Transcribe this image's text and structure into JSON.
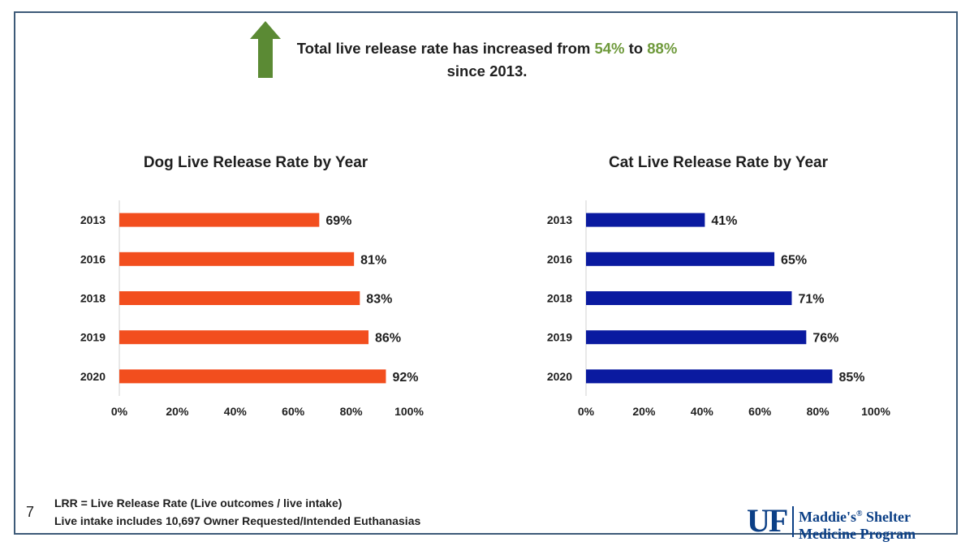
{
  "headline": {
    "part1": "Total live release rate has increased from ",
    "from": "54%",
    "part2": " to ",
    "to": "88%",
    "line2": "since 2013."
  },
  "colors": {
    "arrow": "#5b8a34",
    "highlight": "#6f9a3c",
    "dog_bars": "#f24e1e",
    "cat_bars": "#0a1aa0",
    "frame": "#3d5a78",
    "logo": "#0b3f86"
  },
  "icons": {
    "trend": "up-arrow-icon"
  },
  "chart_data": [
    {
      "type": "bar",
      "orientation": "horizontal",
      "title": "Dog Live Release Rate by Year",
      "categories": [
        "2013",
        "2016",
        "2018",
        "2019",
        "2020"
      ],
      "values": [
        69,
        81,
        83,
        86,
        92
      ],
      "data_labels": [
        "69%",
        "81%",
        "83%",
        "86%",
        "92%"
      ],
      "xlim": [
        0,
        100
      ],
      "x_ticks": [
        "0%",
        "20%",
        "40%",
        "60%",
        "80%",
        "100%"
      ],
      "xlabel": "",
      "ylabel": "",
      "grid": false,
      "color": "#f24e1e"
    },
    {
      "type": "bar",
      "orientation": "horizontal",
      "title": "Cat Live Release Rate by Year",
      "categories": [
        "2013",
        "2016",
        "2018",
        "2019",
        "2020"
      ],
      "values": [
        41,
        65,
        71,
        76,
        85
      ],
      "data_labels": [
        "41%",
        "65%",
        "71%",
        "76%",
        "85%"
      ],
      "xlim": [
        0,
        100
      ],
      "x_ticks": [
        "0%",
        "20%",
        "40%",
        "60%",
        "80%",
        "100%"
      ],
      "xlabel": "",
      "ylabel": "",
      "grid": false,
      "color": "#0a1aa0"
    }
  ],
  "footer": {
    "slide_number": "7",
    "note1": "LRR = Live Release Rate (Live outcomes / live intake)",
    "note2": "Live intake includes 10,697 Owner Requested/Intended Euthanasias"
  },
  "logo": {
    "mark": "UF",
    "line1_a": "Maddie's",
    "line1_reg": "®",
    "line1_b": " Shelter",
    "line2": "Medicine Program"
  }
}
